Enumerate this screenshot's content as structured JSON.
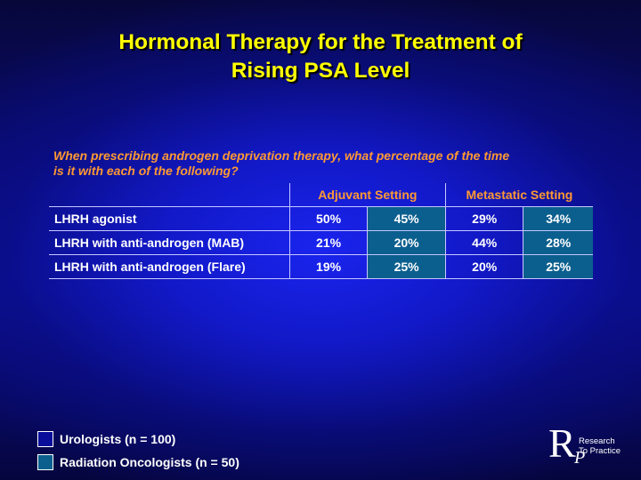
{
  "slide": {
    "title_line1": "Hormonal Therapy for the Treatment of",
    "title_line2": "Rising PSA Level",
    "question_line1": "When prescribing androgen deprivation therapy, what percentage of the time",
    "question_line2": "is it with each of the following?"
  },
  "table": {
    "group_headers": [
      "Adjuvant Setting",
      "Metastatic Setting"
    ],
    "rows": [
      {
        "label": "LHRH agonist",
        "values": [
          "50%",
          "45%",
          "29%",
          "34%"
        ]
      },
      {
        "label": "LHRH with anti-androgen (MAB)",
        "values": [
          "21%",
          "20%",
          "44%",
          "28%"
        ]
      },
      {
        "label": "LHRH with anti-androgen (Flare)",
        "values": [
          "19%",
          "25%",
          "20%",
          "25%"
        ]
      }
    ]
  },
  "legend": [
    {
      "label": "Urologists  (n = 100)",
      "color": "#0a0c9a"
    },
    {
      "label": "Radiation Oncologists  (n = 50)",
      "color": "#0b5f8e"
    }
  ],
  "logo": {
    "letter_r": "R",
    "letter_p": "P",
    "line1": "Research",
    "line2": "To Practice"
  }
}
